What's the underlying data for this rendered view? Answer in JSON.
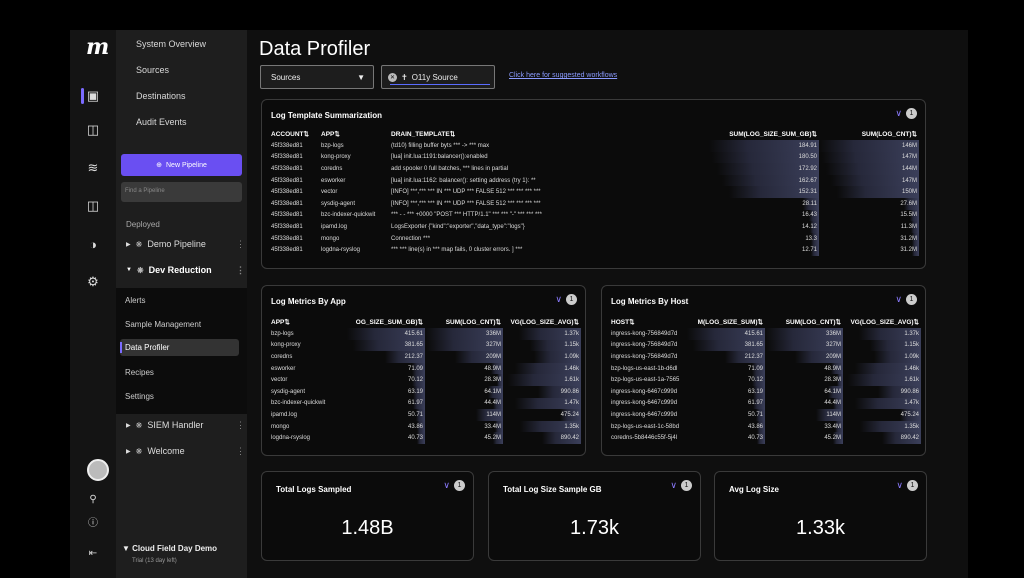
{
  "brand": {
    "logo": "m",
    "accent": "#6a4ff2"
  },
  "rail": [
    "pipeline-icon",
    "dashboard-icon",
    "pulse-icon",
    "monitor-icon",
    "gauge-icon",
    "gear-icon",
    "avatar",
    "search-icon",
    "help-icon",
    "collapse-icon"
  ],
  "nav": {
    "top_items": [
      "System Overview",
      "Sources",
      "Destinations",
      "Audit Events"
    ],
    "new_pipeline": "New Pipeline",
    "find_placeholder": "Find a Pipeline",
    "deployed_label": "Deployed",
    "pipelines": [
      {
        "label": "Demo Pipeline"
      },
      {
        "label": "Dev Reduction"
      },
      {
        "label": "SIEM Handler"
      },
      {
        "label": "Welcome"
      }
    ],
    "sub_items": [
      "Alerts",
      "Sample Management",
      "Data Profiler",
      "Recipes",
      "Settings"
    ],
    "trial_title": "Cloud Field Day Demo",
    "trial_sub": "Trial (13 day left)"
  },
  "page": {
    "title": "Data Profiler",
    "sources_select": "Sources",
    "o11y_select": "O11y Source",
    "workflows_link": "Click here for suggested workflows"
  },
  "summary": {
    "title": "Log Template Summarization",
    "badge": "1",
    "headers": [
      "ACCOUNT",
      "APP",
      "DRAIN_TEMPLATE",
      "SUM(LOG_SIZE_SUM_GB)",
      "SUM(LOG_CNT)"
    ],
    "rows": [
      [
        "45f338ed81",
        "bzp-logs",
        "(td10) filling buffer byts *** -> *** max",
        "184.91",
        "146M",
        1.0
      ],
      [
        "45f338ed81",
        "kong-proxy",
        "[lua] init.lua:1191:balancer():enabled",
        "180.50",
        "147M",
        0.97
      ],
      [
        "45f338ed81",
        "coredns",
        "add spooler 0 full batches, *** lines in partial",
        "172.92",
        "144M",
        0.93
      ],
      [
        "45f338ed81",
        "esworker",
        "[lua] init.lua:1162: balancer(): setting address (try 1): **",
        "162.67",
        "147M",
        0.88
      ],
      [
        "45f338ed81",
        "vector",
        "[INFO] ***,*** *** IN *** UDP *** FALSE 512 *** *** *** ***",
        "152.31",
        "150M",
        0.82
      ],
      [
        "45f338ed81",
        "sysdig-agent",
        "[INFO] ***,*** *** IN *** UDP *** FALSE 512 *** *** *** ***",
        "28.11",
        "27.6M",
        0.15
      ],
      [
        "45f338ed81",
        "bzc-indexer-quickwit",
        "*** - - *** +0000 \"POST *** HTTP/1.1\" *** *** \"-\" *** *** ***",
        "16.43",
        "15.5M",
        0.09
      ],
      [
        "45f338ed81",
        "ipamd.log",
        "LogsExporter {\"kind\":\"exporter\",\"data_type\":\"logs\"}",
        "14.12",
        "11.3M",
        0.08
      ],
      [
        "45f338ed81",
        "mongo",
        "Connection ***",
        "13.3",
        "31.2M",
        0.07
      ],
      [
        "45f338ed81",
        "logdna-rsyslog",
        "*** *** line(s) in *** map fails, 0 cluster errors. ] ***",
        "12.71",
        "31.2M",
        0.07
      ]
    ]
  },
  "by_app": {
    "title": "Log Metrics By App",
    "badge": "1",
    "headers": [
      "APP",
      "OG_SIZE_SUM_GB)",
      "SUM(LOG_CNT)",
      "VG(LOG_SIZE_AVG)"
    ],
    "rows": [
      [
        "bzp-logs",
        "415.61",
        "336M",
        "1.37k",
        1.0,
        1.0,
        0.8
      ],
      [
        "kong-proxy",
        "381.65",
        "327M",
        "1.15k",
        0.92,
        0.97,
        0.65
      ],
      [
        "coredns",
        "212.37",
        "209M",
        "1.09k",
        0.51,
        0.62,
        0.6
      ],
      [
        "esworker",
        "71.09",
        "48.9M",
        "1.46k",
        0.17,
        0.15,
        0.85
      ],
      [
        "vector",
        "70.12",
        "28.3M",
        "1.61k",
        0.17,
        0.08,
        0.93
      ],
      [
        "sysdig-agent",
        "63.19",
        "64.1M",
        "990.86",
        0.15,
        0.19,
        0.55
      ],
      [
        "bzc-indexer-quickwit",
        "61.97",
        "44.4M",
        "1.47k",
        0.15,
        0.13,
        0.85
      ],
      [
        "ipamd.log",
        "50.71",
        "114M",
        "475.24",
        0.12,
        0.34,
        0.27
      ],
      [
        "mongo",
        "43.86",
        "33.4M",
        "1.35k",
        0.1,
        0.1,
        0.78
      ],
      [
        "logdna-rsyslog",
        "40.73",
        "45.2M",
        "890.42",
        0.1,
        0.13,
        0.5
      ]
    ]
  },
  "by_host": {
    "title": "Log Metrics By Host",
    "badge": "1",
    "headers": [
      "HOST",
      "M(LOG_SIZE_SUM)",
      "SUM(LOG_CNT)",
      "VG(LOG_SIZE_AVG)"
    ],
    "rows": [
      [
        "ingress-kong-756849d7d",
        "415.61",
        "336M",
        "1.37k",
        1.0,
        1.0,
        0.8
      ],
      [
        "ingress-kong-756849d7d",
        "381.65",
        "327M",
        "1.15k",
        0.92,
        0.97,
        0.65
      ],
      [
        "ingress-kong-756849d7d",
        "212.37",
        "209M",
        "1.09k",
        0.51,
        0.62,
        0.6
      ],
      [
        "bzp-logs-us-east-1b-d6dl",
        "71.09",
        "48.9M",
        "1.46k",
        0.17,
        0.15,
        0.85
      ],
      [
        "bzp-logs-us-east-1a-7565",
        "70.12",
        "28.3M",
        "1.61k",
        0.17,
        0.08,
        0.93
      ],
      [
        "ingress-kong-6467c999d",
        "63.19",
        "64.1M",
        "990.86",
        0.15,
        0.19,
        0.55
      ],
      [
        "ingress-kong-6467c999d",
        "61.97",
        "44.4M",
        "1.47k",
        0.15,
        0.13,
        0.85
      ],
      [
        "ingress-kong-6467c999d",
        "50.71",
        "114M",
        "475.24",
        0.12,
        0.34,
        0.27
      ],
      [
        "bzp-logs-us-east-1c-58bd",
        "43.86",
        "33.4M",
        "1.35k",
        0.1,
        0.1,
        0.78
      ],
      [
        "coredns-5b8446c55f-5j4l",
        "40.73",
        "45.2M",
        "890.42",
        0.1,
        0.13,
        0.5
      ]
    ]
  },
  "stats": [
    {
      "title": "Total Logs Sampled",
      "value": "1.48B",
      "badge": "1"
    },
    {
      "title": "Total Log Size Sample GB",
      "value": "1.73k",
      "badge": "1"
    },
    {
      "title": "Avg Log Size",
      "value": "1.33k",
      "badge": "1"
    }
  ]
}
